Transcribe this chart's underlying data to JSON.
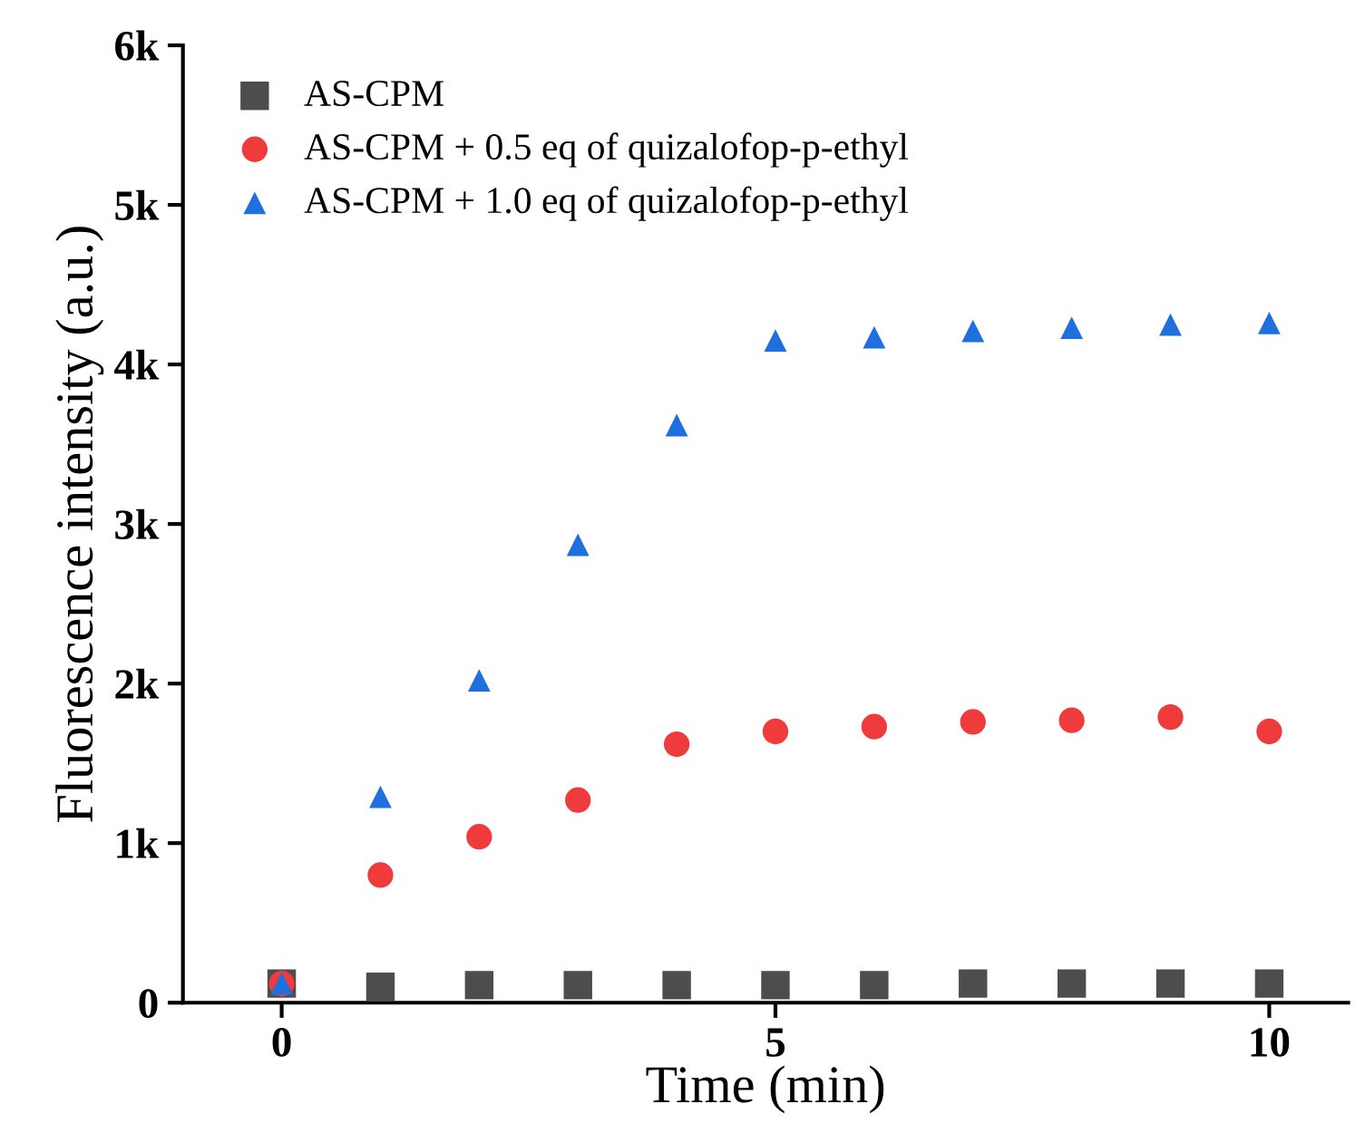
{
  "chart_data": {
    "type": "scatter",
    "xlabel": "Time (min)",
    "ylabel": "Fluorescence intensity (a.u.)",
    "x": [
      0,
      1,
      2,
      3,
      4,
      5,
      6,
      7,
      8,
      9,
      10
    ],
    "series": [
      {
        "name": "AS-CPM",
        "color": "#4d4d4d",
        "marker": "square",
        "values": [
          120,
          100,
          110,
          110,
          110,
          110,
          110,
          120,
          120,
          120,
          120
        ]
      },
      {
        "name": "AS-CPM + 0.5 eq of quizalofop-p-ethyl",
        "color": "#ef3b3b",
        "marker": "circle",
        "values": [
          120,
          800,
          1040,
          1270,
          1620,
          1700,
          1730,
          1760,
          1770,
          1790,
          1700
        ]
      },
      {
        "name": "AS-CPM + 1.0 eq of quizalofop-p-ethyl",
        "color": "#1f6fdf",
        "marker": "triangle",
        "values": [
          120,
          1290,
          2020,
          2870,
          3620,
          4150,
          4170,
          4210,
          4230,
          4250,
          4260
        ]
      }
    ],
    "xlim": [
      -1,
      10.8
    ],
    "xticks": [
      0,
      5,
      10
    ],
    "ylim": [
      0,
      6000
    ],
    "yticks": [
      {
        "value": 0,
        "label": "0"
      },
      {
        "value": 1000,
        "label": "1k"
      },
      {
        "value": 2000,
        "label": "2k"
      },
      {
        "value": 3000,
        "label": "3k"
      },
      {
        "value": 4000,
        "label": "4k"
      },
      {
        "value": 5000,
        "label": "5k"
      },
      {
        "value": 6000,
        "label": "6k"
      }
    ],
    "grid": false,
    "legend": "top left"
  }
}
